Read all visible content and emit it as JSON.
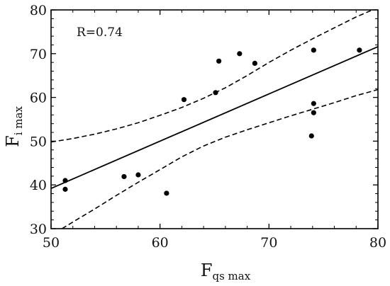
{
  "chart_data": {
    "type": "scatter",
    "xlabel": "F",
    "xlabel_sub": "qs max",
    "ylabel": "F",
    "ylabel_sub": "i max",
    "xlim": [
      50,
      80
    ],
    "ylim": [
      30,
      80
    ],
    "xticks": [
      50,
      60,
      70,
      80
    ],
    "yticks": [
      30,
      40,
      50,
      60,
      70,
      80
    ],
    "annotation": "R=0.74",
    "grid": false,
    "points": [
      {
        "x": 51.3,
        "y": 41.0
      },
      {
        "x": 51.3,
        "y": 39.0
      },
      {
        "x": 56.7,
        "y": 41.9
      },
      {
        "x": 58.0,
        "y": 42.3
      },
      {
        "x": 60.6,
        "y": 38.1
      },
      {
        "x": 62.2,
        "y": 59.5
      },
      {
        "x": 65.1,
        "y": 61.1
      },
      {
        "x": 65.4,
        "y": 68.3
      },
      {
        "x": 67.3,
        "y": 70.0
      },
      {
        "x": 68.7,
        "y": 67.8
      },
      {
        "x": 73.9,
        "y": 51.2
      },
      {
        "x": 74.1,
        "y": 58.6
      },
      {
        "x": 74.1,
        "y": 56.5
      },
      {
        "x": 74.1,
        "y": 70.8
      },
      {
        "x": 78.3,
        "y": 70.8
      }
    ],
    "fit_line": {
      "style": "solid",
      "x": [
        50,
        80
      ],
      "y": [
        39.2,
        71.6
      ]
    },
    "confidence_band": {
      "style": "dashed",
      "upper": {
        "x": [
          50,
          52,
          54,
          56,
          58,
          60,
          62,
          64,
          66,
          68,
          70,
          72,
          74,
          76,
          78,
          79.5
        ],
        "y": [
          49.8,
          50.6,
          51.6,
          52.8,
          54.2,
          55.9,
          57.7,
          59.8,
          62.2,
          65.0,
          68.0,
          70.8,
          73.4,
          75.9,
          78.4,
          80.0
        ]
      },
      "lower": {
        "x": [
          51.0,
          52,
          54,
          56,
          58,
          60,
          62,
          64,
          66,
          68,
          70,
          72,
          74,
          76,
          78,
          80
        ],
        "y": [
          30.0,
          31.5,
          34.5,
          37.6,
          40.6,
          43.5,
          46.4,
          48.9,
          50.9,
          52.6,
          54.2,
          55.8,
          57.3,
          58.8,
          60.4,
          61.8
        ]
      }
    }
  }
}
